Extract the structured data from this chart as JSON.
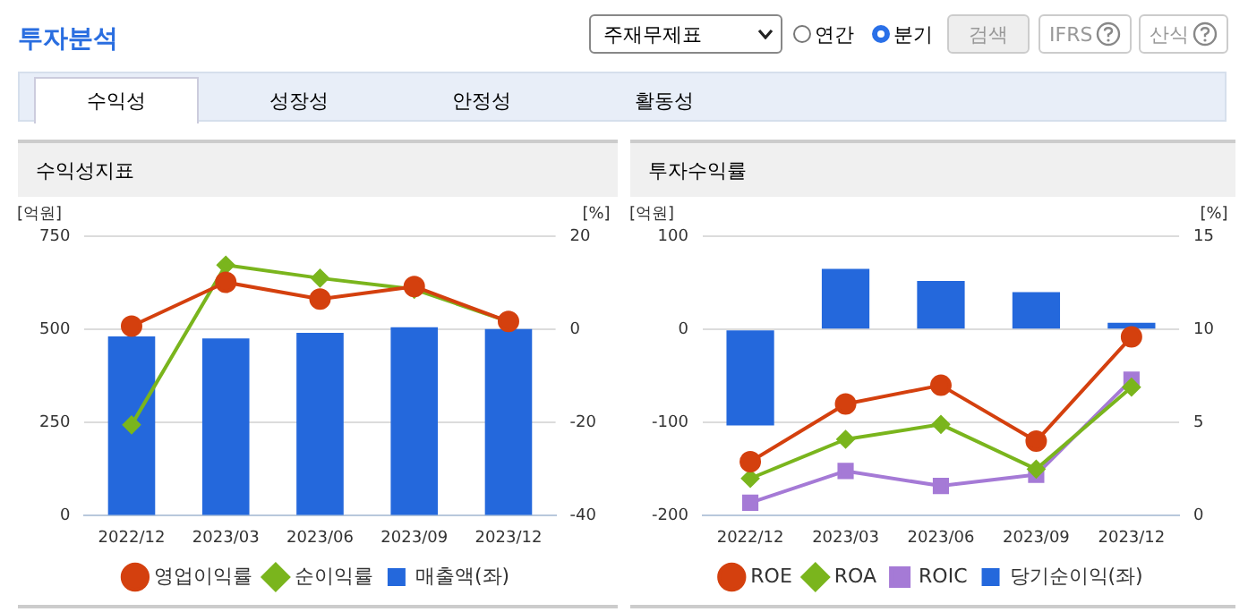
{
  "chart_data": [
    {
      "type": "other",
      "title": "투자분석",
      "annotations": [
        "주재무제표",
        "연간",
        "분기",
        "검색",
        "IFRS",
        "산식",
        "수익성",
        "성장성",
        "안정성",
        "활동성"
      ]
    },
    {
      "type": "bar",
      "title": "수익성지표",
      "ylabel": "[억원]",
      "y2label": "[%]",
      "categories": [
        "2022/12",
        "2023/03",
        "2023/06",
        "2023/09",
        "2023/12"
      ],
      "ylim": [
        0,
        750
      ],
      "yticks": [
        0,
        250,
        500,
        750
      ],
      "y2lim": [
        -40,
        20
      ],
      "y2ticks": [
        -40,
        -20,
        0,
        20
      ],
      "grid": "y",
      "legend": "bottom",
      "series": [
        {
          "name": "매출액(좌)",
          "type": "bar",
          "color": "#2468dc",
          "values": [
            481,
            476,
            491,
            506,
            501
          ]
        },
        {
          "name": "영업이익률",
          "type": "line",
          "axis": "y2",
          "marker": "circle",
          "color": "#d4400e",
          "values": [
            0.7,
            10.1,
            6.5,
            9.2,
            1.7
          ]
        },
        {
          "name": "순이익률",
          "type": "line",
          "axis": "y2",
          "marker": "diamond",
          "color": "#7ab51d",
          "values": [
            -20.5,
            13.8,
            11.0,
            8.6,
            1.7
          ]
        }
      ]
    },
    {
      "type": "bar",
      "title": "투자수익률",
      "ylabel": "[억원]",
      "y2label": "[%]",
      "categories": [
        "2022/12",
        "2023/03",
        "2023/06",
        "2023/09",
        "2023/12"
      ],
      "ylim": [
        -200,
        100
      ],
      "yticks": [
        -200,
        -100,
        0,
        100
      ],
      "y2lim": [
        0,
        15
      ],
      "y2ticks": [
        0,
        5,
        10,
        15
      ],
      "grid": "y",
      "legend": "bottom",
      "series": [
        {
          "name": "당기순이익(좌)",
          "type": "bar",
          "color": "#2468dc",
          "values": [
            -103,
            65,
            52,
            40,
            7
          ]
        },
        {
          "name": "ROE",
          "type": "line",
          "axis": "y2",
          "marker": "circle",
          "color": "#d4400e",
          "values": [
            2.9,
            6.0,
            7.0,
            4.0,
            9.6
          ]
        },
        {
          "name": "ROA",
          "type": "line",
          "axis": "y2",
          "marker": "diamond",
          "color": "#7ab51d",
          "values": [
            2.0,
            4.1,
            4.9,
            2.5,
            6.9
          ]
        },
        {
          "name": "ROIC",
          "type": "line",
          "axis": "y2",
          "marker": "square",
          "color": "#a57ad6",
          "values": [
            0.7,
            2.4,
            1.6,
            2.2,
            7.3
          ]
        }
      ]
    }
  ]
}
